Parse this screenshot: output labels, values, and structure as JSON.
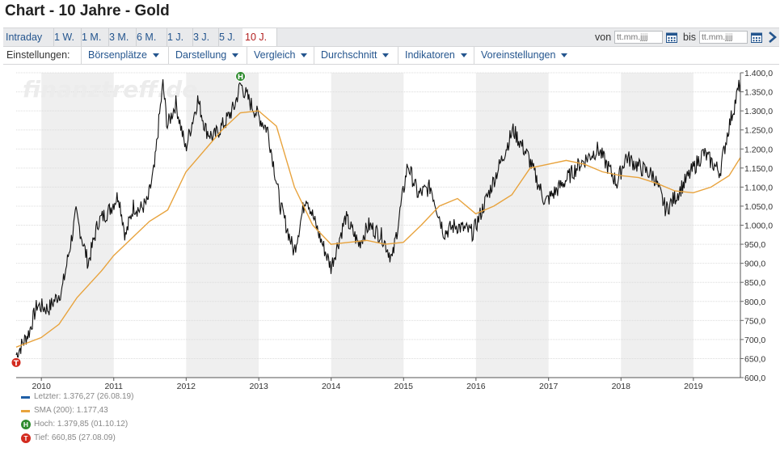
{
  "page": {
    "title": "Chart - 10 Jahre - Gold"
  },
  "range_tabs": [
    {
      "label": "Intraday",
      "active": false
    },
    {
      "label": "1 W.",
      "active": false
    },
    {
      "label": "1 M.",
      "active": false
    },
    {
      "label": "3 M.",
      "active": false
    },
    {
      "label": "6 M.",
      "active": false
    },
    {
      "label": "1 J.",
      "active": false
    },
    {
      "label": "3 J.",
      "active": false
    },
    {
      "label": "5 J.",
      "active": false
    },
    {
      "label": "10 J.",
      "active": true
    }
  ],
  "date_range": {
    "from_label": "von",
    "from_placeholder": "tt.mm.jjjj",
    "to_label": "bis",
    "to_placeholder": "tt.mm.jjjj"
  },
  "settings": {
    "label": "Einstellungen:",
    "menus": [
      "Börsenplätze",
      "Darstellung",
      "Vergleich",
      "Durchschnitt",
      "Indikatoren",
      "Voreinstellungen"
    ]
  },
  "colors": {
    "price": "#111111",
    "sma": "#e8a33d",
    "shade": "#efefef",
    "grid": "#dcdcdc",
    "high_marker": "#2e8b2e",
    "low_marker": "#d32b1f",
    "tab_active": "#b21e1e",
    "link": "#24558e",
    "letzter": "#1f5fa6"
  },
  "chart_data": {
    "type": "line",
    "watermark": "finanztreff.de",
    "y_axis": {
      "min": 600,
      "max": 1400,
      "ticks": [
        "600,0",
        "650,0",
        "700,0",
        "750,0",
        "800,0",
        "850,0",
        "900,0",
        "950,0",
        "1.000,0",
        "1.050,0",
        "1.100,0",
        "1.150,0",
        "1.200,0",
        "1.250,0",
        "1.300,0",
        "1.350,0",
        "1.400,0"
      ]
    },
    "x_axis": {
      "range": [
        "2009-08-27",
        "2019-08-26"
      ],
      "ticks": [
        "2010",
        "2011",
        "2012",
        "2013",
        "2014",
        "2015",
        "2016",
        "2017",
        "2018",
        "2019"
      ]
    },
    "series": [
      {
        "name": "Letzter",
        "points": [
          [
            "2009-08-27",
            660
          ],
          [
            "2009-11-01",
            720
          ],
          [
            "2009-12-10",
            790
          ],
          [
            "2010-02-05",
            780
          ],
          [
            "2010-04-15",
            830
          ],
          [
            "2010-06-25",
            1030
          ],
          [
            "2010-08-01",
            950
          ],
          [
            "2010-08-25",
            900
          ],
          [
            "2010-10-15",
            1010
          ],
          [
            "2010-12-10",
            1040
          ],
          [
            "2011-01-25",
            1080
          ],
          [
            "2011-03-01",
            970
          ],
          [
            "2011-04-10",
            1050
          ],
          [
            "2011-05-10",
            1040
          ],
          [
            "2011-06-20",
            1060
          ],
          [
            "2011-07-25",
            1150
          ],
          [
            "2011-08-20",
            1290
          ],
          [
            "2011-09-06",
            1370
          ],
          [
            "2011-09-28",
            1260
          ],
          [
            "2011-11-10",
            1320
          ],
          [
            "2011-12-29",
            1200
          ],
          [
            "2012-02-28",
            1330
          ],
          [
            "2012-04-10",
            1250
          ],
          [
            "2012-05-16",
            1230
          ],
          [
            "2012-07-15",
            1270
          ],
          [
            "2012-08-30",
            1310
          ],
          [
            "2012-10-01",
            1370
          ],
          [
            "2012-11-20",
            1320
          ],
          [
            "2012-12-31",
            1285
          ],
          [
            "2013-02-15",
            1250
          ],
          [
            "2013-03-20",
            1150
          ],
          [
            "2013-04-20",
            1050
          ],
          [
            "2013-06-28",
            930
          ],
          [
            "2013-08-28",
            1080
          ],
          [
            "2013-10-15",
            1000
          ],
          [
            "2013-12-31",
            890
          ],
          [
            "2014-03-15",
            1020
          ],
          [
            "2014-05-20",
            950
          ],
          [
            "2014-07-10",
            1000
          ],
          [
            "2014-09-15",
            970
          ],
          [
            "2014-11-05",
            910
          ],
          [
            "2015-01-22",
            1160
          ],
          [
            "2015-03-15",
            1080
          ],
          [
            "2015-05-18",
            1100
          ],
          [
            "2015-07-24",
            980
          ],
          [
            "2015-09-20",
            1000
          ],
          [
            "2015-12-17",
            980
          ],
          [
            "2016-03-10",
            1090
          ],
          [
            "2016-05-01",
            1160
          ],
          [
            "2016-07-06",
            1250
          ],
          [
            "2016-09-20",
            1180
          ],
          [
            "2016-12-15",
            1060
          ],
          [
            "2017-03-15",
            1110
          ],
          [
            "2017-06-06",
            1160
          ],
          [
            "2017-09-08",
            1200
          ],
          [
            "2017-12-12",
            1110
          ],
          [
            "2018-01-25",
            1180
          ],
          [
            "2018-04-11",
            1150
          ],
          [
            "2018-06-15",
            1130
          ],
          [
            "2018-08-16",
            1040
          ],
          [
            "2018-10-10",
            1080
          ],
          [
            "2019-02-20",
            1190
          ],
          [
            "2019-05-15",
            1140
          ],
          [
            "2019-06-25",
            1250
          ],
          [
            "2019-08-26",
            1376.27
          ]
        ]
      },
      {
        "name": "SMA (200)",
        "points": [
          [
            "2009-08-27",
            680
          ],
          [
            "2009-12-31",
            705
          ],
          [
            "2010-03-31",
            740
          ],
          [
            "2010-06-30",
            810
          ],
          [
            "2010-10-31",
            880
          ],
          [
            "2010-12-31",
            920
          ],
          [
            "2011-06-30",
            1010
          ],
          [
            "2011-09-30",
            1040
          ],
          [
            "2011-12-31",
            1140
          ],
          [
            "2012-06-30",
            1250
          ],
          [
            "2012-09-30",
            1295
          ],
          [
            "2012-12-31",
            1300
          ],
          [
            "2013-03-31",
            1260
          ],
          [
            "2013-06-30",
            1100
          ],
          [
            "2013-09-30",
            1000
          ],
          [
            "2013-12-31",
            950
          ],
          [
            "2014-03-31",
            955
          ],
          [
            "2014-06-30",
            960
          ],
          [
            "2014-09-30",
            950
          ],
          [
            "2014-12-31",
            955
          ],
          [
            "2015-03-31",
            1000
          ],
          [
            "2015-06-30",
            1050
          ],
          [
            "2015-09-30",
            1070
          ],
          [
            "2015-12-31",
            1030
          ],
          [
            "2016-03-31",
            1050
          ],
          [
            "2016-06-30",
            1080
          ],
          [
            "2016-09-30",
            1150
          ],
          [
            "2016-12-31",
            1160
          ],
          [
            "2017-03-31",
            1170
          ],
          [
            "2017-06-30",
            1160
          ],
          [
            "2017-09-30",
            1140
          ],
          [
            "2017-12-31",
            1130
          ],
          [
            "2018-03-31",
            1125
          ],
          [
            "2018-06-30",
            1110
          ],
          [
            "2018-09-30",
            1090
          ],
          [
            "2018-12-31",
            1085
          ],
          [
            "2019-03-31",
            1100
          ],
          [
            "2019-06-30",
            1130
          ],
          [
            "2019-08-26",
            1177.43
          ]
        ]
      }
    ],
    "markers": [
      {
        "type": "high",
        "symbol": "H",
        "date": "2012-10-01",
        "value": 1379.85
      },
      {
        "type": "low",
        "symbol": "T",
        "date": "2009-08-27",
        "value": 660.85
      }
    ],
    "legend": [
      {
        "kind": "swatch",
        "color": "#1f5fa6",
        "text": "Letzter: 1.376,27 (26.08.19)"
      },
      {
        "kind": "swatch",
        "color": "#e8a33d",
        "text": "SMA (200): 1.177,43"
      },
      {
        "kind": "high",
        "symbol": "H",
        "text": "Hoch: 1.379,85 (01.10.12)"
      },
      {
        "kind": "low",
        "symbol": "T",
        "text": "Tief: 660,85 (27.08.09)"
      }
    ]
  }
}
